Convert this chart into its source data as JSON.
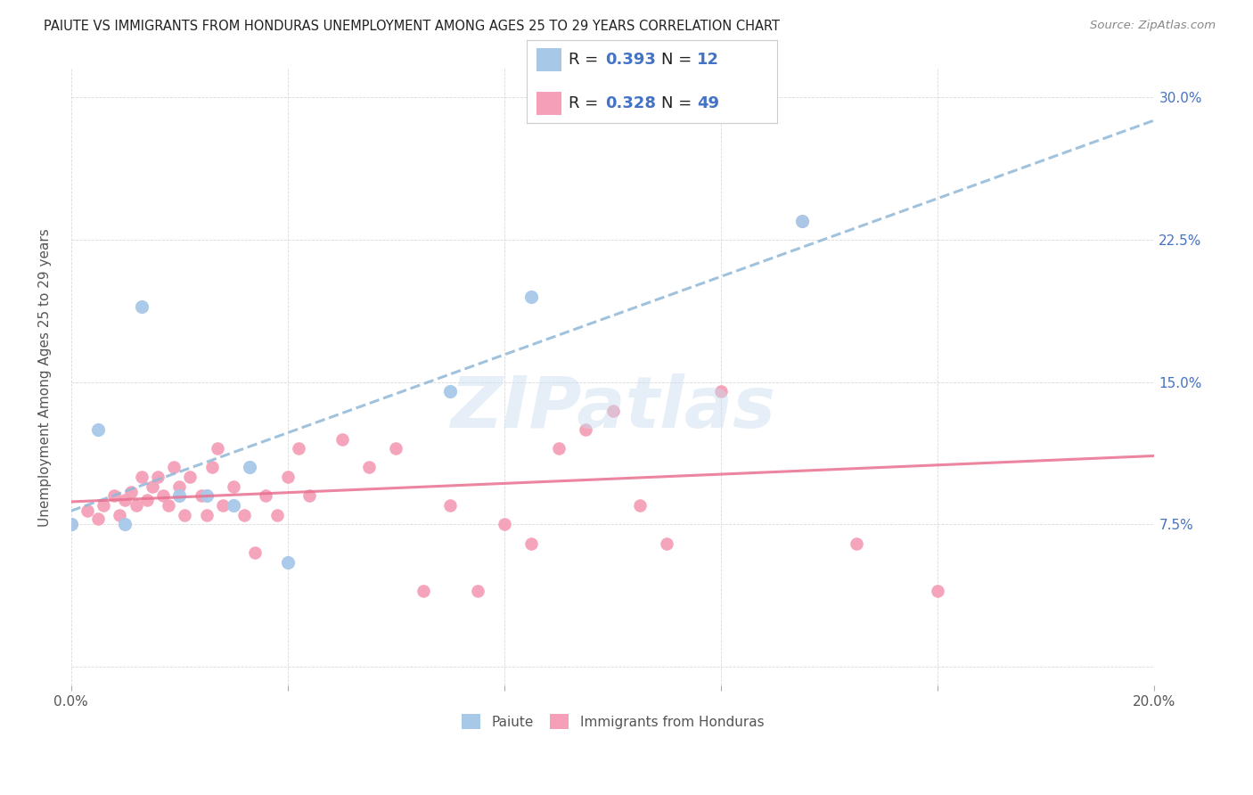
{
  "title": "PAIUTE VS IMMIGRANTS FROM HONDURAS UNEMPLOYMENT AMONG AGES 25 TO 29 YEARS CORRELATION CHART",
  "source": "Source: ZipAtlas.com",
  "ylabel": "Unemployment Among Ages 25 to 29 years",
  "xlim": [
    0.0,
    0.2
  ],
  "ylim": [
    -0.01,
    0.315
  ],
  "ytick_positions": [
    0.0,
    0.075,
    0.15,
    0.225,
    0.3
  ],
  "ytick_labels": [
    "",
    "7.5%",
    "15.0%",
    "22.5%",
    "30.0%"
  ],
  "paiute_R": 0.393,
  "paiute_N": 12,
  "honduras_R": 0.328,
  "honduras_N": 49,
  "paiute_color": "#a8c8e8",
  "honduras_color": "#f5a0b8",
  "paiute_line_color": "#90b8d8",
  "honduras_line_color": "#e87090",
  "watermark": "ZIPatlas",
  "paiute_x": [
    0.0,
    0.005,
    0.01,
    0.013,
    0.02,
    0.025,
    0.03,
    0.033,
    0.04,
    0.07,
    0.085,
    0.135
  ],
  "paiute_y": [
    0.075,
    0.125,
    0.075,
    0.19,
    0.09,
    0.09,
    0.085,
    0.105,
    0.055,
    0.145,
    0.195,
    0.235
  ],
  "honduras_x": [
    0.0,
    0.003,
    0.005,
    0.006,
    0.008,
    0.009,
    0.01,
    0.011,
    0.012,
    0.013,
    0.014,
    0.015,
    0.016,
    0.017,
    0.018,
    0.019,
    0.02,
    0.021,
    0.022,
    0.024,
    0.025,
    0.026,
    0.027,
    0.028,
    0.03,
    0.032,
    0.034,
    0.036,
    0.038,
    0.04,
    0.042,
    0.044,
    0.05,
    0.055,
    0.06,
    0.065,
    0.07,
    0.075,
    0.08,
    0.085,
    0.09,
    0.095,
    0.1,
    0.105,
    0.11,
    0.12,
    0.135,
    0.145,
    0.16
  ],
  "honduras_y": [
    0.075,
    0.082,
    0.078,
    0.085,
    0.09,
    0.08,
    0.088,
    0.092,
    0.085,
    0.1,
    0.088,
    0.095,
    0.1,
    0.09,
    0.085,
    0.105,
    0.095,
    0.08,
    0.1,
    0.09,
    0.08,
    0.105,
    0.115,
    0.085,
    0.095,
    0.08,
    0.06,
    0.09,
    0.08,
    0.1,
    0.115,
    0.09,
    0.12,
    0.105,
    0.115,
    0.04,
    0.085,
    0.04,
    0.075,
    0.065,
    0.115,
    0.125,
    0.135,
    0.085,
    0.065,
    0.145,
    0.235,
    0.065,
    0.04
  ],
  "background_color": "#ffffff",
  "grid_color": "#d0d0d0"
}
